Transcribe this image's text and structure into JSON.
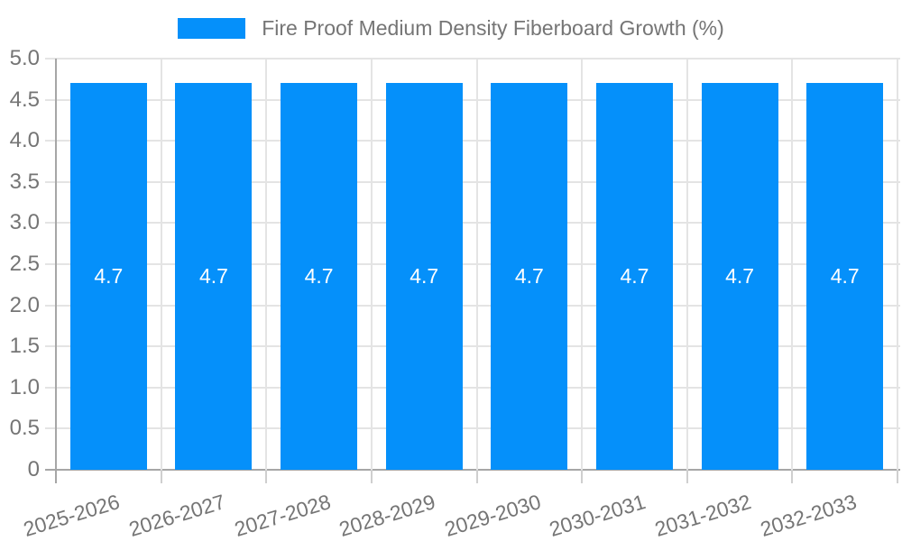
{
  "chart_data": {
    "type": "bar",
    "title": "Fire Proof Medium Density Fiberboard Growth (%)",
    "series_name": "Fire Proof Medium Density Fiberboard Growth (%)",
    "categories": [
      "2025-2026",
      "2026-2027",
      "2027-2028",
      "2028-2029",
      "2029-2030",
      "2030-2031",
      "2031-2032",
      "2032-2033"
    ],
    "values": [
      4.7,
      4.7,
      4.7,
      4.7,
      4.7,
      4.7,
      4.7,
      4.7
    ],
    "xlabel": "",
    "ylabel": "",
    "ylim": [
      0,
      5
    ],
    "yticks": [
      {
        "v": 0,
        "label": "0"
      },
      {
        "v": 0.5,
        "label": "0.5"
      },
      {
        "v": 1,
        "label": "1.0"
      },
      {
        "v": 1.5,
        "label": "1.5"
      },
      {
        "v": 2,
        "label": "2.0"
      },
      {
        "v": 2.5,
        "label": "2.5"
      },
      {
        "v": 3,
        "label": "3.0"
      },
      {
        "v": 3.5,
        "label": "3.5"
      },
      {
        "v": 4,
        "label": "4.0"
      },
      {
        "v": 4.5,
        "label": "4.5"
      },
      {
        "v": 5,
        "label": "5.0"
      }
    ],
    "grid": true,
    "legend_position": "top-center",
    "colors": {
      "bar": "#0590FA",
      "value_label": "#FFFFFF",
      "gridline": "#E4E4E4",
      "axis": "#A6A6A6",
      "tick_label": "#757575",
      "legend_text": "#757575",
      "background": "#FFFFFF"
    }
  }
}
